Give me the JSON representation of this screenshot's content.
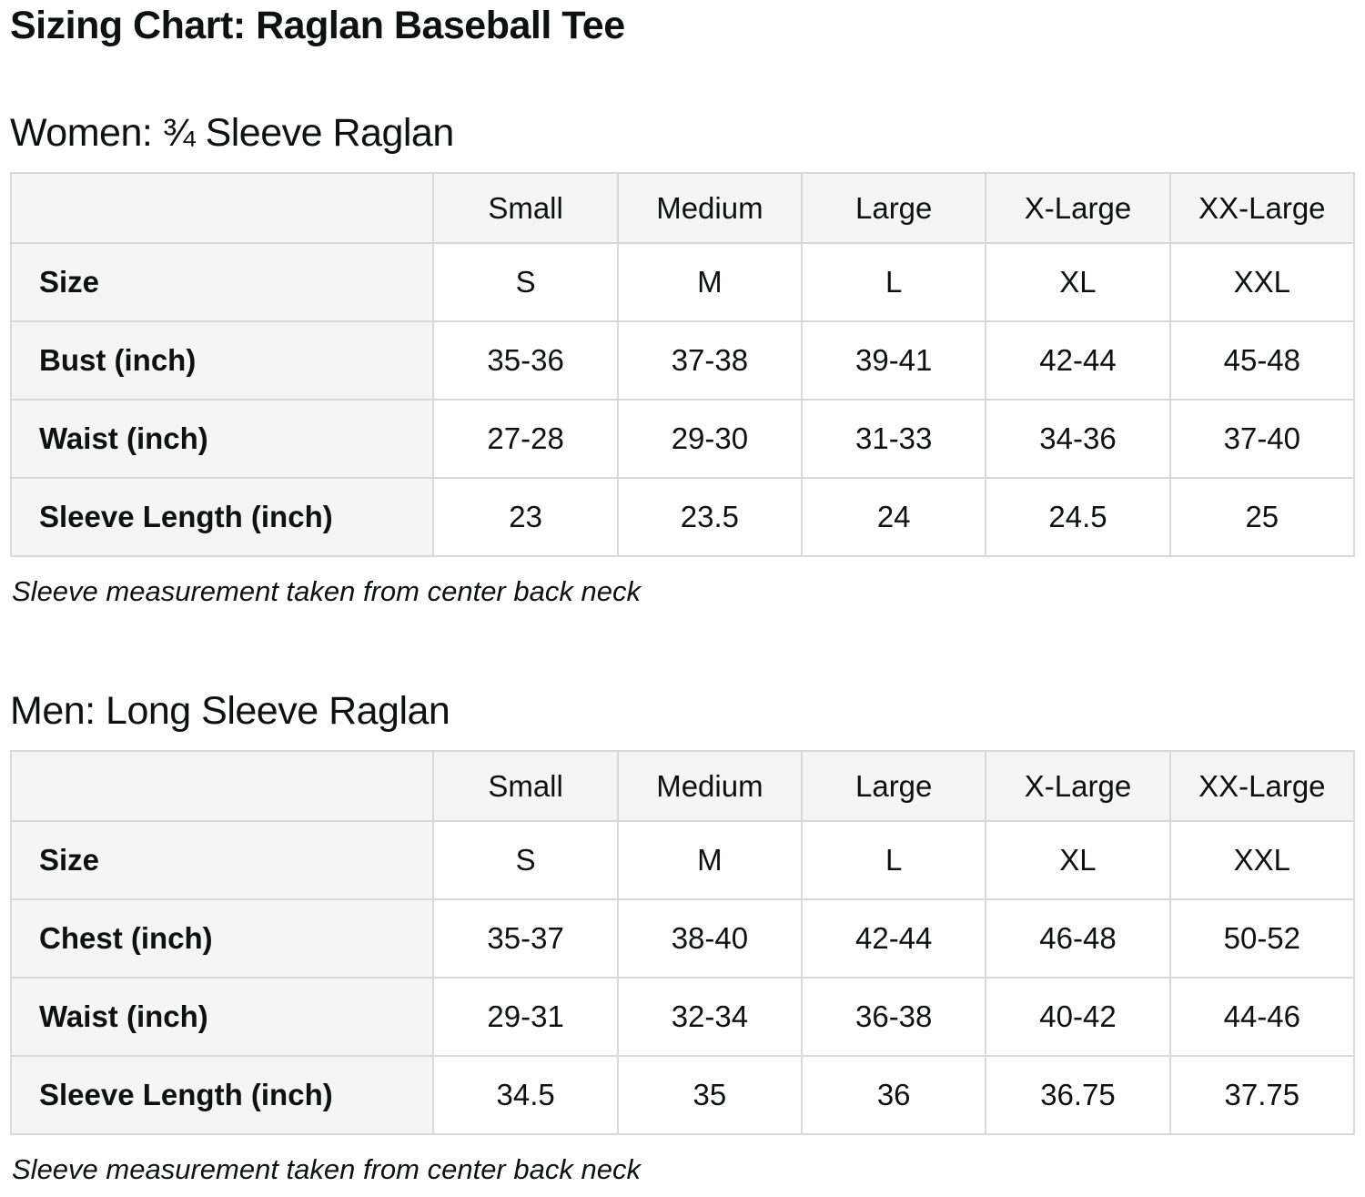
{
  "page": {
    "title": "Sizing Chart: Raglan Baseball Tee"
  },
  "colors": {
    "text": "#0f1111",
    "border": "#d9d9d9",
    "header_bg": "#f5f5f5",
    "cell_bg": "#ffffff"
  },
  "women": {
    "heading": "Women: ¾ Sleeve Raglan",
    "note": "Sleeve measurement taken from center back neck",
    "table": {
      "column_headers": [
        "",
        "Small",
        "Medium",
        "Large",
        "X-Large",
        "XX-Large"
      ],
      "rows": [
        {
          "label": "Size",
          "values": [
            "S",
            "M",
            "L",
            "XL",
            "XXL"
          ]
        },
        {
          "label": "Bust (inch)",
          "values": [
            "35-36",
            "37-38",
            "39-41",
            "42-44",
            "45-48"
          ]
        },
        {
          "label": "Waist (inch)",
          "values": [
            "27-28",
            "29-30",
            "31-33",
            "34-36",
            "37-40"
          ]
        },
        {
          "label": "Sleeve Length (inch)",
          "values": [
            "23",
            "23.5",
            "24",
            "24.5",
            "25"
          ]
        }
      ]
    }
  },
  "men": {
    "heading": "Men: Long Sleeve Raglan",
    "note": "Sleeve measurement taken from center back neck",
    "table": {
      "column_headers": [
        "",
        "Small",
        "Medium",
        "Large",
        "X-Large",
        "XX-Large"
      ],
      "rows": [
        {
          "label": "Size",
          "values": [
            "S",
            "M",
            "L",
            "XL",
            "XXL"
          ]
        },
        {
          "label": "Chest (inch)",
          "values": [
            "35-37",
            "38-40",
            "42-44",
            "46-48",
            "50-52"
          ]
        },
        {
          "label": "Waist (inch)",
          "values": [
            "29-31",
            "32-34",
            "36-38",
            "40-42",
            "44-46"
          ]
        },
        {
          "label": "Sleeve Length (inch)",
          "values": [
            "34.5",
            "35",
            "36",
            "36.75",
            "37.75"
          ]
        }
      ]
    }
  }
}
